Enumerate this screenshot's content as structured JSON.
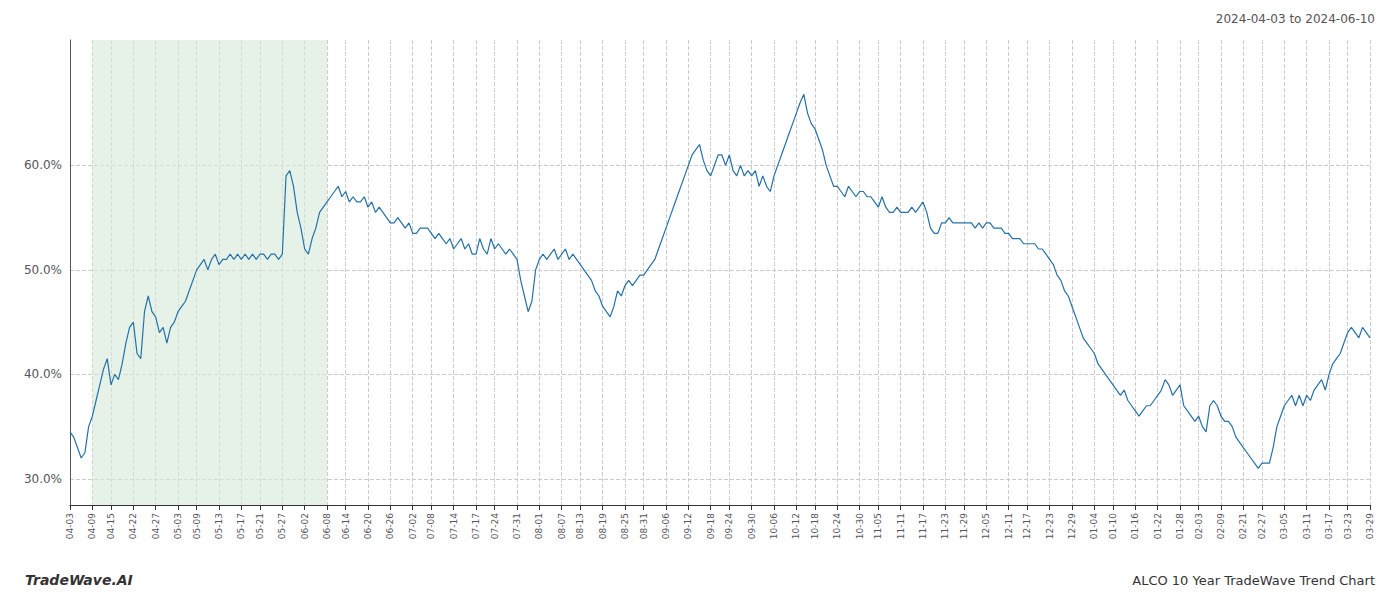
{
  "chart_data": {
    "type": "line",
    "title": "ALCO 10 Year TradeWave Trend Chart",
    "subtitle": "2024-04-03 to 2024-06-10",
    "annotations": [
      "TradeWave.AI"
    ],
    "color": "#2471a8",
    "grid": true,
    "ylim": [
      0.275,
      0.72
    ],
    "yticks": [
      {
        "value": 0.3,
        "label": "30.0%"
      },
      {
        "value": 0.4,
        "label": "40.0%"
      },
      {
        "value": 0.5,
        "label": "50.0%"
      },
      {
        "value": 0.6,
        "label": "60.0%"
      }
    ],
    "shaded_range": {
      "from": "04-09",
      "to": "06-08",
      "color": "#d6ead8"
    },
    "categories": [
      "04-03",
      null,
      null,
      null,
      null,
      null,
      "04-09",
      null,
      null,
      null,
      null,
      "04-15",
      null,
      null,
      null,
      null,
      null,
      "04-22",
      null,
      null,
      null,
      null,
      null,
      "04-27",
      null,
      null,
      null,
      null,
      null,
      "05-03",
      null,
      null,
      null,
      null,
      "05-09",
      null,
      null,
      null,
      null,
      null,
      "05-13",
      null,
      null,
      null,
      null,
      null,
      "05-17",
      null,
      null,
      null,
      null,
      "05-21",
      null,
      null,
      null,
      null,
      null,
      "05-27",
      null,
      null,
      null,
      null,
      null,
      "06-02",
      null,
      null,
      null,
      null,
      null,
      "06-08",
      null,
      null,
      null,
      null,
      "06-14",
      null,
      null,
      null,
      null,
      null,
      "06-20",
      null,
      null,
      null,
      null,
      null,
      "06-26",
      null,
      null,
      null,
      null,
      null,
      "07-02",
      null,
      null,
      null,
      null,
      "07-08",
      null,
      null,
      null,
      null,
      null,
      "07-14",
      null,
      null,
      null,
      null,
      null,
      "07-17",
      null,
      null,
      null,
      null,
      "07-24",
      null,
      null,
      null,
      null,
      null,
      "07-31",
      null,
      null,
      null,
      null,
      null,
      "08-01",
      null,
      null,
      null,
      null,
      null,
      "08-07",
      null,
      null,
      null,
      null,
      "08-13",
      null,
      null,
      null,
      null,
      null,
      "08-19",
      null,
      null,
      null,
      null,
      null,
      "08-25",
      null,
      null,
      null,
      null,
      "08-31",
      null,
      null,
      null,
      null,
      null,
      "09-06",
      null,
      null,
      null,
      null,
      null,
      "09-12",
      null,
      null,
      null,
      null,
      null,
      "09-18",
      null,
      null,
      null,
      null,
      "09-24",
      null,
      null,
      null,
      null,
      null,
      "09-30",
      null,
      null,
      null,
      null,
      null,
      "10-06",
      null,
      null,
      null,
      null,
      null,
      "10-12",
      null,
      null,
      null,
      null,
      "10-18",
      null,
      null,
      null,
      null,
      null,
      "10-24",
      null,
      null,
      null,
      null,
      null,
      "10-30",
      null,
      null,
      null,
      null,
      "11-05",
      null,
      null,
      null,
      null,
      null,
      "11-11",
      null,
      null,
      null,
      null,
      null,
      "11-17",
      null,
      null,
      null,
      null,
      null,
      "11-23",
      null,
      null,
      null,
      null,
      "11-29",
      null,
      null,
      null,
      null,
      null,
      "12-05",
      null,
      null,
      null,
      null,
      null,
      "12-11",
      null,
      null,
      null,
      null,
      "12-17",
      null,
      null,
      null,
      null,
      null,
      "12-23",
      null,
      null,
      null,
      null,
      null,
      "12-29",
      null,
      null,
      null,
      null,
      null,
      "01-04",
      null,
      null,
      null,
      null,
      "01-10",
      null,
      null,
      null,
      null,
      null,
      "01-16",
      null,
      null,
      null,
      null,
      null,
      "01-22",
      null,
      null,
      null,
      null,
      null,
      "01-28",
      null,
      null,
      null,
      null,
      "02-03",
      null,
      null,
      null,
      null,
      null,
      "02-09",
      null,
      null,
      null,
      null,
      null,
      "02-21",
      null,
      null,
      null,
      null,
      "02-27",
      null,
      null,
      null,
      null,
      null,
      "03-05",
      null,
      null,
      null,
      null,
      null,
      "03-11",
      null,
      null,
      null,
      null,
      null,
      "03-17",
      null,
      null,
      null,
      null,
      "03-23",
      null,
      null,
      null,
      null,
      null,
      "03-29"
    ],
    "values": [
      0.345,
      0.34,
      0.33,
      0.32,
      0.325,
      0.35,
      0.36,
      0.375,
      0.39,
      0.405,
      0.415,
      0.39,
      0.4,
      0.395,
      0.41,
      0.43,
      0.445,
      0.45,
      0.42,
      0.415,
      0.46,
      0.475,
      0.46,
      0.455,
      0.44,
      0.445,
      0.43,
      0.445,
      0.45,
      0.46,
      0.465,
      0.47,
      0.48,
      0.49,
      0.5,
      0.505,
      0.51,
      0.5,
      0.51,
      0.515,
      0.505,
      0.51,
      0.51,
      0.515,
      0.51,
      0.515,
      0.51,
      0.515,
      0.51,
      0.515,
      0.51,
      0.515,
      0.515,
      0.51,
      0.515,
      0.515,
      0.51,
      0.515,
      0.59,
      0.595,
      0.58,
      0.555,
      0.54,
      0.52,
      0.515,
      0.53,
      0.54,
      0.555,
      0.56,
      0.565,
      0.57,
      0.575,
      0.58,
      0.57,
      0.575,
      0.565,
      0.57,
      0.565,
      0.565,
      0.57,
      0.56,
      0.565,
      0.555,
      0.56,
      0.555,
      0.55,
      0.545,
      0.545,
      0.55,
      0.545,
      0.54,
      0.545,
      0.535,
      0.535,
      0.54,
      0.54,
      0.54,
      0.535,
      0.53,
      0.535,
      0.53,
      0.525,
      0.53,
      0.52,
      0.525,
      0.53,
      0.52,
      0.525,
      0.515,
      0.515,
      0.53,
      0.52,
      0.515,
      0.53,
      0.52,
      0.525,
      0.52,
      0.515,
      0.52,
      0.515,
      0.51,
      0.49,
      0.475,
      0.46,
      0.47,
      0.5,
      0.51,
      0.515,
      0.51,
      0.515,
      0.52,
      0.51,
      0.515,
      0.52,
      0.51,
      0.515,
      0.51,
      0.505,
      0.5,
      0.495,
      0.49,
      0.48,
      0.475,
      0.465,
      0.46,
      0.455,
      0.465,
      0.48,
      0.475,
      0.485,
      0.49,
      0.485,
      0.49,
      0.495,
      0.495,
      0.5,
      0.505,
      0.51,
      0.52,
      0.53,
      0.54,
      0.55,
      0.56,
      0.57,
      0.58,
      0.59,
      0.6,
      0.61,
      0.615,
      0.62,
      0.605,
      0.595,
      0.59,
      0.6,
      0.61,
      0.61,
      0.6,
      0.61,
      0.595,
      0.59,
      0.6,
      0.59,
      0.595,
      0.59,
      0.595,
      0.58,
      0.59,
      0.58,
      0.575,
      0.59,
      0.6,
      0.61,
      0.62,
      0.63,
      0.64,
      0.65,
      0.66,
      0.668,
      0.65,
      0.64,
      0.635,
      0.625,
      0.615,
      0.6,
      0.59,
      0.58,
      0.58,
      0.575,
      0.57,
      0.58,
      0.575,
      0.57,
      0.575,
      0.575,
      0.57,
      0.57,
      0.565,
      0.56,
      0.57,
      0.56,
      0.555,
      0.555,
      0.56,
      0.555,
      0.555,
      0.555,
      0.56,
      0.555,
      0.56,
      0.565,
      0.555,
      0.54,
      0.535,
      0.535,
      0.545,
      0.545,
      0.55,
      0.545,
      0.545,
      0.545,
      0.545,
      0.545,
      0.545,
      0.54,
      0.545,
      0.54,
      0.545,
      0.545,
      0.54,
      0.54,
      0.54,
      0.535,
      0.535,
      0.53,
      0.53,
      0.53,
      0.525,
      0.525,
      0.525,
      0.525,
      0.52,
      0.52,
      0.515,
      0.51,
      0.505,
      0.495,
      0.49,
      0.48,
      0.475,
      0.465,
      0.455,
      0.445,
      0.435,
      0.43,
      0.425,
      0.42,
      0.41,
      0.405,
      0.4,
      0.395,
      0.39,
      0.385,
      0.38,
      0.385,
      0.375,
      0.37,
      0.365,
      0.36,
      0.365,
      0.37,
      0.37,
      0.375,
      0.38,
      0.385,
      0.395,
      0.39,
      0.38,
      0.385,
      0.39,
      0.37,
      0.365,
      0.36,
      0.355,
      0.36,
      0.35,
      0.345,
      0.37,
      0.375,
      0.37,
      0.36,
      0.355,
      0.355,
      0.35,
      0.34,
      0.335,
      0.33,
      0.325,
      0.32,
      0.315,
      0.31,
      0.315,
      0.315,
      0.315,
      0.33,
      0.35,
      0.36,
      0.37,
      0.375,
      0.38,
      0.37,
      0.38,
      0.37,
      0.38,
      0.375,
      0.385,
      0.39,
      0.395,
      0.385,
      0.4,
      0.41,
      0.415,
      0.42,
      0.43,
      0.44,
      0.445,
      0.44,
      0.435,
      0.445,
      0.44,
      0.435
    ]
  }
}
